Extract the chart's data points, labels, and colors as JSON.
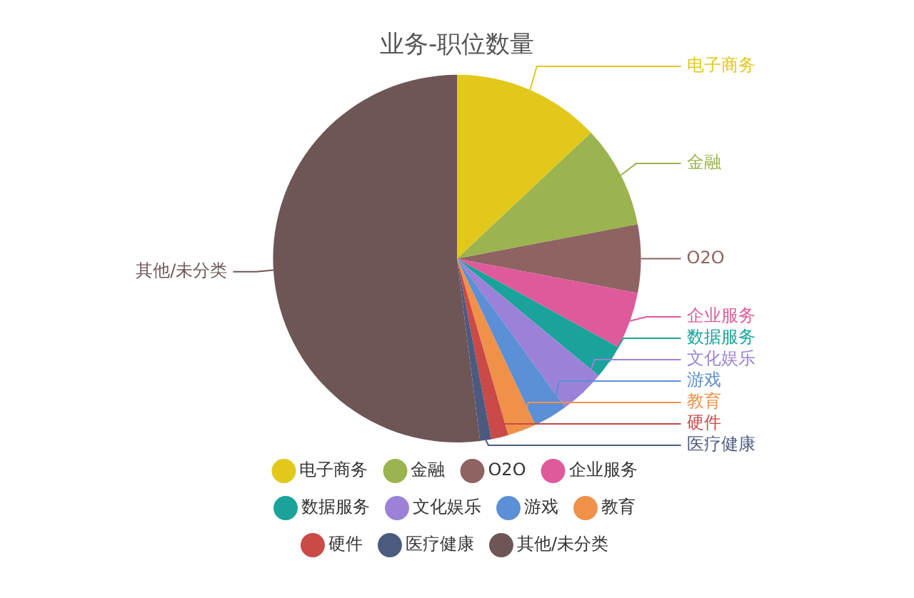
{
  "chart_data": {
    "type": "pie",
    "title": "业务-职位数量",
    "categories": [
      "电子商务",
      "金融",
      "O2O",
      "企业服务",
      "数据服务",
      "文化娱乐",
      "游戏",
      "教育",
      "硬件",
      "医疗健康",
      "其他/未分类"
    ],
    "values": [
      13,
      9,
      6,
      5,
      3,
      4,
      3,
      2.5,
      1.5,
      1,
      52
    ],
    "colors": [
      "#e2c81a",
      "#9bb44f",
      "#8e6362",
      "#df5a9a",
      "#1aa39a",
      "#9b82d8",
      "#5b8fd6",
      "#f0914a",
      "#c94a47",
      "#4c5a80",
      "#6e5656"
    ],
    "legend": "bottom"
  }
}
